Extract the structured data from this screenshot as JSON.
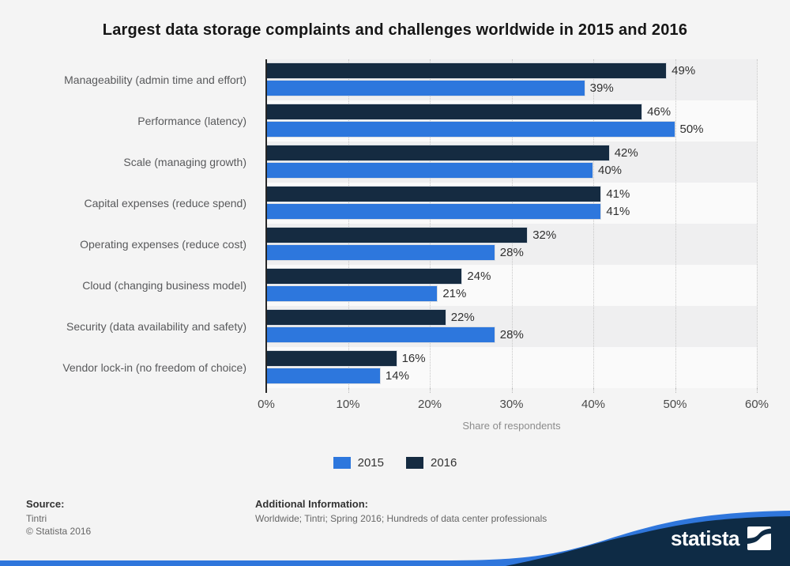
{
  "chart_data": {
    "type": "bar",
    "orientation": "horizontal",
    "title": "Largest data storage complaints and challenges worldwide in 2015 and 2016",
    "categories": [
      "Manageability (admin time and effort)",
      "Performance (latency)",
      "Scale (managing growth)",
      "Capital expenses (reduce spend)",
      "Operating expenses (reduce cost)",
      "Cloud (changing business model)",
      "Security (data availability and safety)",
      "Vendor lock-in (no freedom of choice)"
    ],
    "series": [
      {
        "name": "2016",
        "color": "#152b41",
        "values": [
          49,
          46,
          42,
          41,
          32,
          24,
          22,
          16
        ],
        "labels": [
          "49%",
          "46%",
          "42%",
          "41%",
          "32%",
          "24%",
          "22%",
          "16%"
        ]
      },
      {
        "name": "2015",
        "color": "#2d77dd",
        "values": [
          39,
          50,
          40,
          41,
          28,
          21,
          28,
          14
        ],
        "labels": [
          "39%",
          "50%",
          "40%",
          "41%",
          "28%",
          "21%",
          "28%",
          "14%"
        ]
      }
    ],
    "value_suffix": "%",
    "xlabel": "Share of respondents",
    "xlim": [
      0,
      60
    ],
    "x_ticks": [
      "0%",
      "10%",
      "20%",
      "30%",
      "40%",
      "50%",
      "60%"
    ],
    "grid": "dotted-vertical",
    "legend_position": "bottom",
    "bar_order_per_category": [
      "2016",
      "2015"
    ]
  },
  "legend": [
    {
      "label": "2015",
      "color": "#2d77dd"
    },
    {
      "label": "2016",
      "color": "#152b41"
    }
  ],
  "footer": {
    "source_label": "Source:",
    "source_value": "Tintri",
    "copyright": "© Statista 2016",
    "info_label": "Additional Information:",
    "info_value": "Worldwide; Tintri; Spring 2016; Hundreds of data center professionals"
  },
  "branding": {
    "logo_text": "statista",
    "wave_navy": "#0e2b45",
    "wave_blue": "#2f76dc"
  },
  "colors": {
    "background": "#f4f4f4",
    "band_dark": "#efeff0",
    "band_light": "#fafafa",
    "axis": "#262626",
    "grid": "#c6c6c6"
  }
}
